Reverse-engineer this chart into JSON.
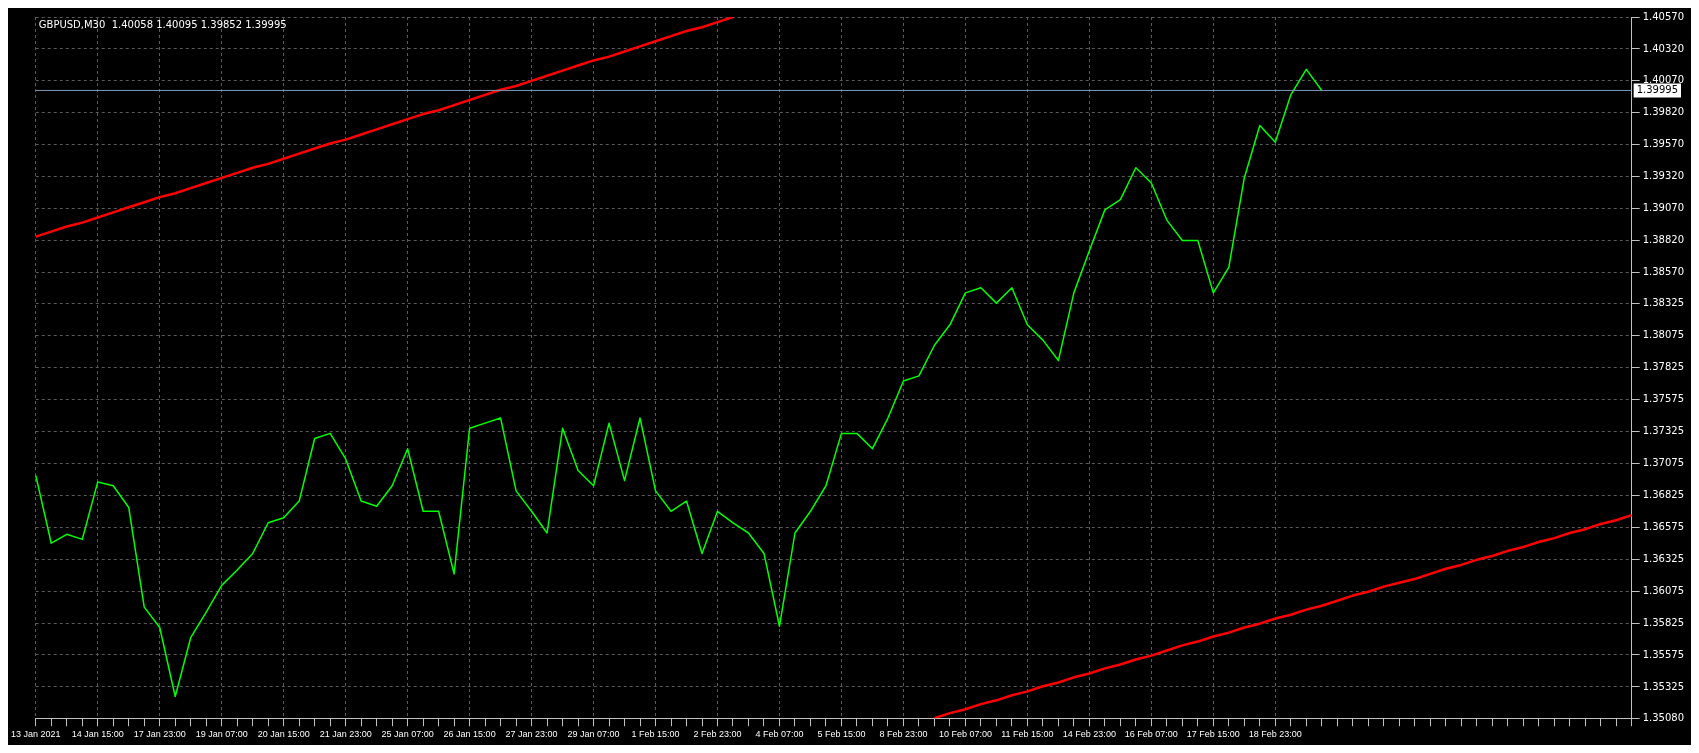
{
  "chart_data": {
    "type": "line",
    "title": "GBPUSD,M30  1.40058 1.40095 1.39852 1.39995",
    "categories": [
      "13 Jan 2021",
      null,
      null,
      null,
      "14 Jan 15:00",
      null,
      null,
      null,
      "17 Jan 23:00",
      null,
      null,
      null,
      "19 Jan 07:00",
      null,
      null,
      null,
      "20 Jan 15:00",
      null,
      null,
      null,
      "21 Jan 23:00",
      null,
      null,
      null,
      "25 Jan 07:00",
      null,
      null,
      null,
      "26 Jan 15:00",
      null,
      null,
      null,
      "27 Jan 23:00",
      null,
      null,
      null,
      "29 Jan 07:00",
      null,
      null,
      null,
      "1 Feb 15:00",
      null,
      null,
      null,
      "2 Feb 23:00",
      null,
      null,
      null,
      "4 Feb 07:00",
      null,
      null,
      null,
      "5 Feb 15:00",
      null,
      null,
      null,
      "8 Feb 23:00",
      null,
      null,
      null,
      "10 Feb 07:00",
      null,
      null,
      null,
      "11 Feb 15:00",
      null,
      null,
      null,
      "14 Feb 23:00",
      null,
      null,
      null,
      "16 Feb 07:00",
      null,
      null,
      null,
      "17 Feb 15:00",
      null,
      null,
      null,
      "18 Feb 23:00",
      null,
      null,
      null,
      null,
      null,
      null,
      null,
      null,
      null,
      null,
      null,
      null,
      null,
      null,
      null,
      null,
      null,
      null,
      null,
      null,
      null,
      null,
      null
    ],
    "series": [
      {
        "color": "#00ff00",
        "values": [
          1.3698,
          1.3645,
          1.3652,
          1.3648,
          1.3693,
          1.369,
          1.3673,
          1.3595,
          1.3579,
          1.3525,
          1.3571,
          1.3591,
          1.3612,
          1.3624,
          1.3637,
          1.3661,
          1.3665,
          1.3678,
          1.3727,
          1.3731,
          1.3711,
          1.3678,
          1.3674,
          1.369,
          1.3719,
          1.367,
          1.367,
          1.3621,
          1.3735,
          1.3739,
          1.3743,
          1.3686,
          1.367,
          1.3653,
          1.3735,
          1.3702,
          1.369,
          1.3739,
          1.3694,
          1.3743,
          1.3686,
          1.367,
          1.3678,
          1.3637,
          1.367,
          1.3661,
          1.3653,
          1.3637,
          1.358,
          1.3653,
          1.367,
          1.369,
          1.3731,
          1.3731,
          1.3719,
          1.3743,
          1.3772,
          1.3776,
          1.38,
          1.3816,
          1.3841,
          1.3845,
          1.3833,
          1.3845,
          1.3816,
          1.3804,
          1.3788,
          1.3841,
          1.3874,
          1.3906,
          1.3914,
          1.3939,
          1.3927,
          1.3898,
          1.3882,
          1.3882,
          1.3841,
          1.3861,
          1.3931,
          1.3972,
          1.3959,
          1.3996,
          1.4016,
          1.39995,
          null,
          null,
          null,
          null,
          null,
          null,
          null,
          null,
          null,
          null,
          null,
          null,
          null,
          null,
          null,
          null,
          null,
          null,
          null,
          null
        ]
      },
      {
        "color": "#ff0000",
        "values": [
          1.3885,
          1.3889,
          1.3893,
          1.3896,
          1.39,
          1.3904,
          1.3908,
          1.3912,
          1.3916,
          1.3919,
          1.3923,
          1.3927,
          1.3931,
          1.3935,
          1.3939,
          1.3942,
          1.3946,
          1.395,
          1.3954,
          1.3958,
          1.3961,
          1.3965,
          1.3969,
          1.3973,
          1.3977,
          1.3981,
          1.3984,
          1.3988,
          1.3992,
          1.3996,
          1.4,
          1.4003,
          1.4007,
          1.4011,
          1.4015,
          1.4019,
          1.4023,
          1.4026,
          1.403,
          1.4034,
          1.4038,
          1.4042,
          1.4046,
          1.4049,
          1.4053,
          1.4057,
          null,
          null,
          null,
          null,
          null,
          null,
          null,
          null,
          null,
          null,
          null,
          null,
          null,
          null,
          null,
          null,
          null,
          null,
          null,
          null,
          null,
          null,
          null,
          null,
          null,
          null,
          null,
          null,
          null,
          null,
          null,
          null,
          null,
          null,
          null,
          null,
          null,
          null,
          null,
          null,
          null,
          null,
          null,
          null,
          null,
          null,
          null,
          null,
          null,
          null,
          null,
          null,
          null,
          null,
          null,
          null,
          null,
          null
        ]
      },
      {
        "color": "#ff0000",
        "values": [
          null,
          null,
          null,
          null,
          null,
          null,
          null,
          null,
          null,
          null,
          null,
          null,
          null,
          null,
          null,
          null,
          null,
          null,
          null,
          null,
          null,
          null,
          null,
          null,
          null,
          null,
          null,
          null,
          null,
          null,
          null,
          null,
          null,
          null,
          null,
          null,
          null,
          null,
          null,
          null,
          null,
          null,
          null,
          null,
          null,
          null,
          null,
          null,
          null,
          null,
          null,
          null,
          null,
          null,
          null,
          null,
          null,
          null,
          1.3508,
          1.3512,
          1.3515,
          1.3519,
          1.3522,
          1.3526,
          1.3529,
          1.3533,
          1.3536,
          1.354,
          1.3543,
          1.3547,
          1.355,
          1.3554,
          1.3557,
          1.3561,
          1.3565,
          1.3568,
          1.3572,
          1.3575,
          1.3579,
          1.3582,
          1.3586,
          1.3589,
          1.3593,
          1.3596,
          1.36,
          1.3604,
          1.3607,
          1.3611,
          1.3614,
          1.3617,
          1.3621,
          1.3625,
          1.3628,
          1.3632,
          1.3635,
          1.3639,
          1.3642,
          1.3646,
          1.3649,
          1.3653,
          1.3656,
          1.366,
          1.3663,
          1.3667
        ]
      }
    ],
    "ylim": [
      1.3508,
      1.4057
    ],
    "yticks": [
      {
        "value": 1.3508,
        "label": "1.35080"
      },
      {
        "value": 1.35325,
        "label": "1.35325"
      },
      {
        "value": 1.35575,
        "label": "1.35575"
      },
      {
        "value": 1.35825,
        "label": "1.35825"
      },
      {
        "value": 1.36075,
        "label": "1.36075"
      },
      {
        "value": 1.36325,
        "label": "1.36325"
      },
      {
        "value": 1.36575,
        "label": "1.36575"
      },
      {
        "value": 1.36825,
        "label": "1.36825"
      },
      {
        "value": 1.37075,
        "label": "1.37075"
      },
      {
        "value": 1.37325,
        "label": "1.37325"
      },
      {
        "value": 1.37575,
        "label": "1.37575"
      },
      {
        "value": 1.37825,
        "label": "1.37825"
      },
      {
        "value": 1.38075,
        "label": "1.38075"
      },
      {
        "value": 1.38325,
        "label": "1.38325"
      },
      {
        "value": 1.3857,
        "label": "1.38570"
      },
      {
        "value": 1.3882,
        "label": "1.38820"
      },
      {
        "value": 1.3907,
        "label": "1.39070"
      },
      {
        "value": 1.3932,
        "label": "1.39320"
      },
      {
        "value": 1.3957,
        "label": "1.39570"
      },
      {
        "value": 1.3982,
        "label": "1.39820"
      },
      {
        "value": 1.4007,
        "label": "1.40070"
      },
      {
        "value": 1.4032,
        "label": "1.40320"
      },
      {
        "value": 1.4057,
        "label": "1.40570"
      }
    ],
    "ref_lines": [
      {
        "axis": "y",
        "value": 1.39995,
        "label": "1.39995",
        "color": "#7b9bb5"
      }
    ],
    "grid": true,
    "legend": false,
    "marker": "none",
    "line_style": "solid"
  }
}
